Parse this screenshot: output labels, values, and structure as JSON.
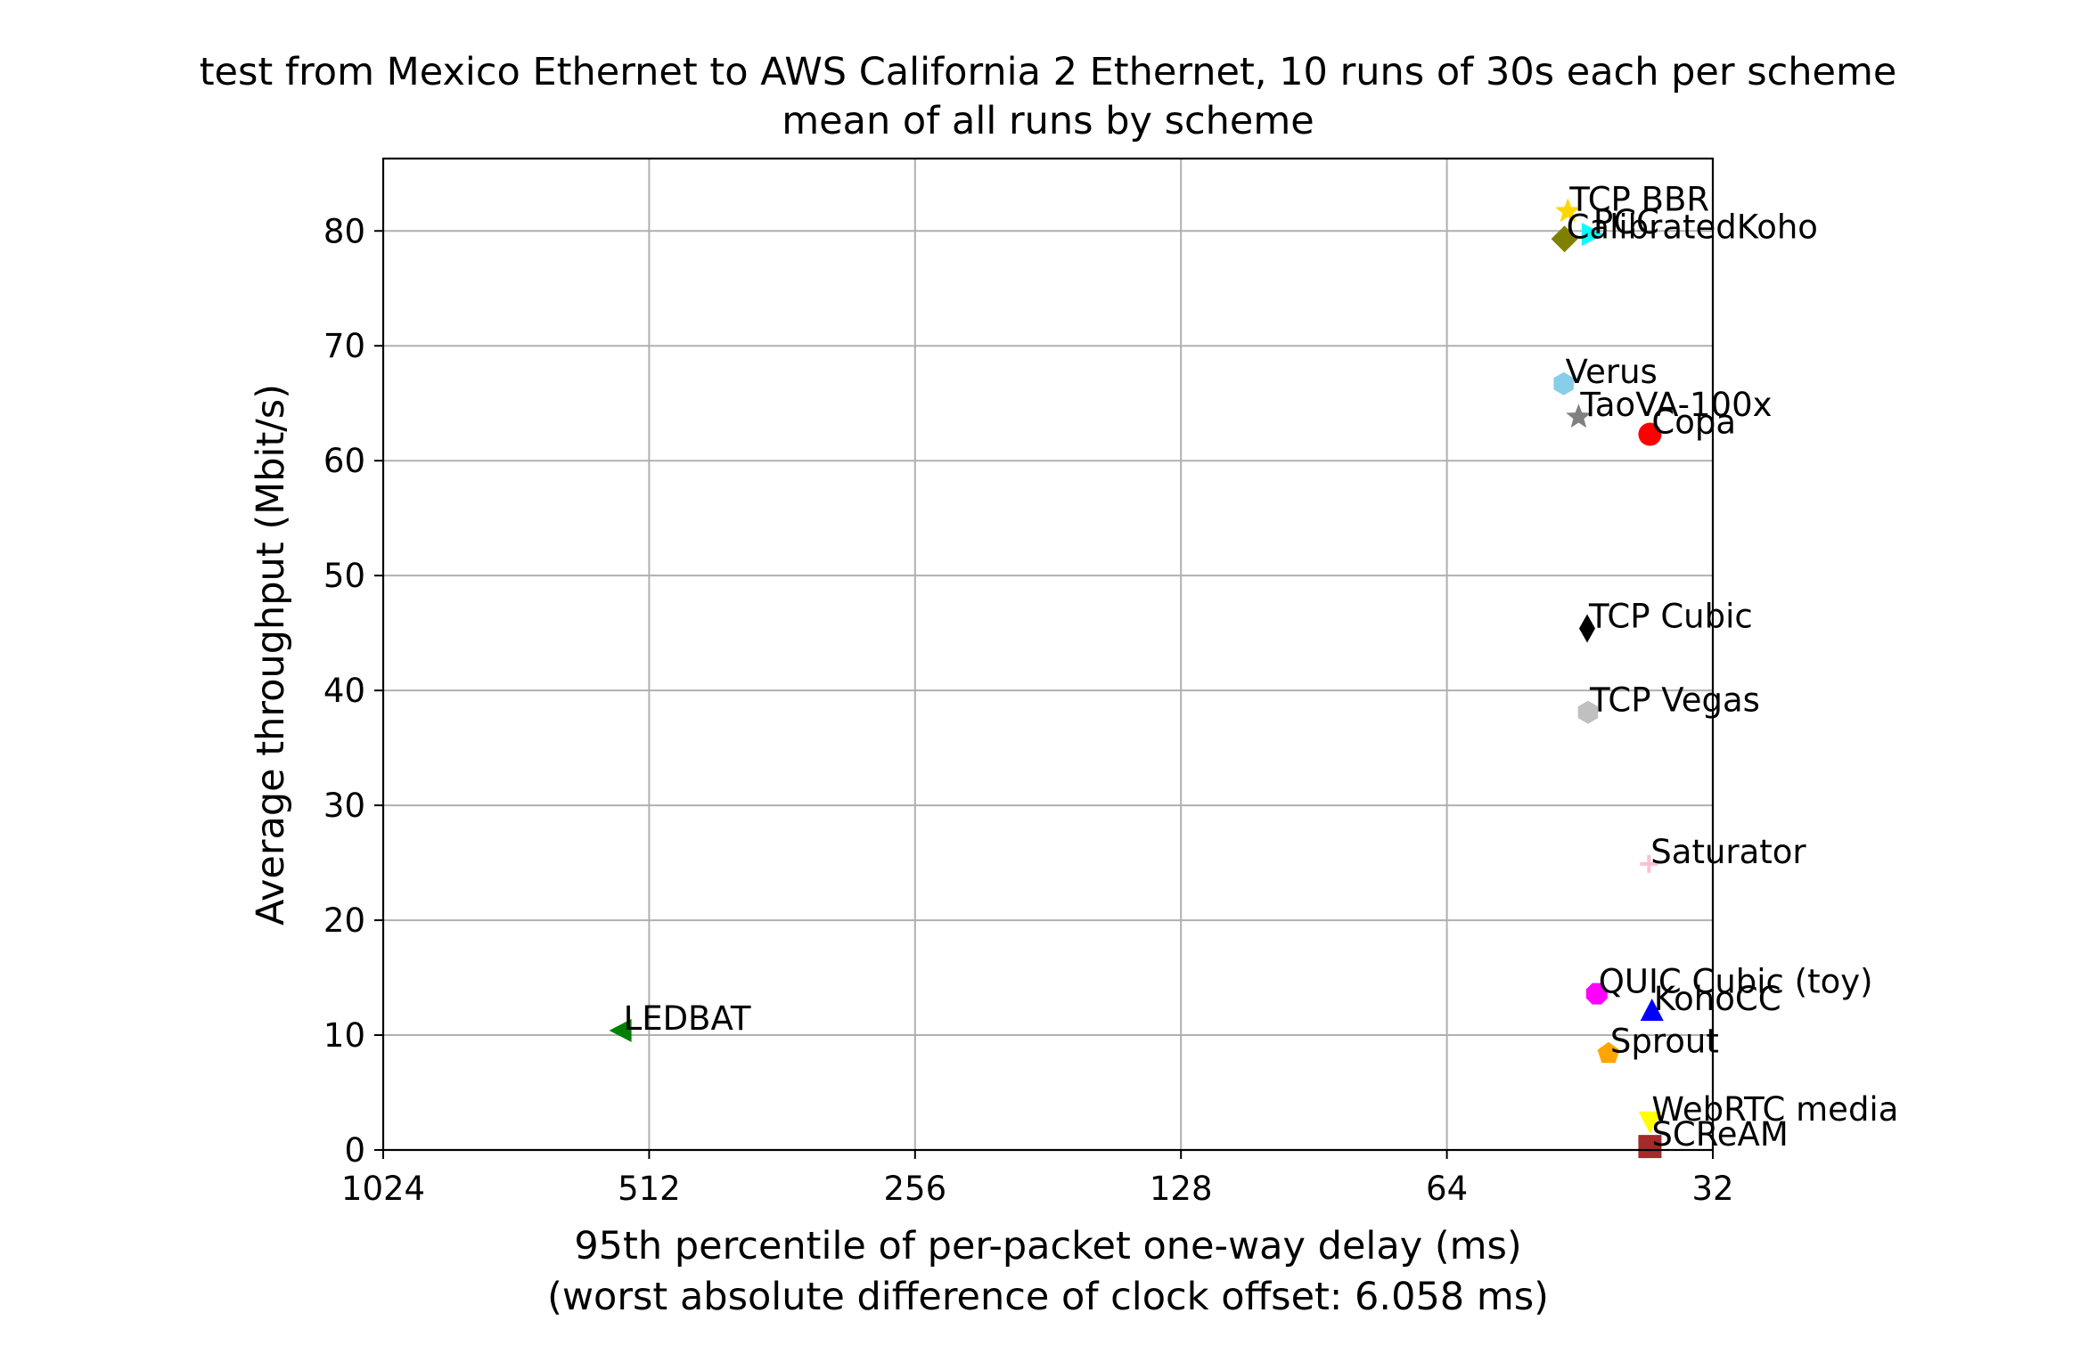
{
  "chart_data": {
    "type": "scatter",
    "title": "test from Mexico Ethernet to AWS California 2 Ethernet, 10 runs of 30s each per scheme",
    "subtitle": "mean of all runs by scheme",
    "xlabel": "95th percentile of per-packet one-way delay (ms)",
    "xlabel_note": "(worst absolute difference of clock offset: 6.058 ms)",
    "ylabel": "Average throughput (Mbit/s)",
    "x_scale": "log2",
    "x_inverted": true,
    "xlim": [
      1024,
      32
    ],
    "ylim": [
      0,
      86.3
    ],
    "xticks": [
      1024,
      512,
      256,
      128,
      64,
      32
    ],
    "xtick_labels": [
      "1024",
      "512",
      "256",
      "128",
      "64",
      "32"
    ],
    "yticks": [
      0,
      10,
      20,
      30,
      40,
      50,
      60,
      70,
      80
    ],
    "ytick_labels": [
      "0",
      "10",
      "20",
      "30",
      "40",
      "50",
      "60",
      "70",
      "80"
    ],
    "grid": true,
    "points": [
      {
        "name": "TCP BBR",
        "x": 46.7,
        "y": 81.7,
        "marker": "star",
        "color": "#ffd700"
      },
      {
        "name": "PCC",
        "x": 43.9,
        "y": 79.7,
        "marker": "triangle-right",
        "color": "#00ffff"
      },
      {
        "name": "CalibratedKoho",
        "x": 47.1,
        "y": 79.3,
        "marker": "diamond",
        "color": "#808000"
      },
      {
        "name": "Verus",
        "x": 47.2,
        "y": 66.7,
        "marker": "hexagon",
        "color": "#87ceeb"
      },
      {
        "name": "TaoVA-100x",
        "x": 45.4,
        "y": 63.8,
        "marker": "star",
        "color": "#808080"
      },
      {
        "name": "Copa",
        "x": 37.7,
        "y": 62.3,
        "marker": "circle",
        "color": "#ff0000"
      },
      {
        "name": "TCP Cubic",
        "x": 44.4,
        "y": 45.4,
        "marker": "thin-diamond",
        "color": "#000000"
      },
      {
        "name": "TCP Vegas",
        "x": 44.3,
        "y": 38.1,
        "marker": "hexagon",
        "color": "#c0c0c0"
      },
      {
        "name": "Saturator",
        "x": 37.8,
        "y": 24.9,
        "marker": "plus",
        "color": "#ffc0cb"
      },
      {
        "name": "QUIC Cubic (toy)",
        "x": 43.3,
        "y": 13.6,
        "marker": "octagon",
        "color": "#ff00ff"
      },
      {
        "name": "KohoCC",
        "x": 37.5,
        "y": 12.1,
        "marker": "triangle-up",
        "color": "#0000ff"
      },
      {
        "name": "LEDBAT",
        "x": 550,
        "y": 10.4,
        "marker": "triangle-left",
        "color": "#008000"
      },
      {
        "name": "Sprout",
        "x": 42.0,
        "y": 8.4,
        "marker": "pentagon",
        "color": "#ffa500"
      },
      {
        "name": "WebRTC media",
        "x": 37.7,
        "y": 2.5,
        "marker": "triangle-down",
        "color": "#ffff00"
      },
      {
        "name": "SCReAM",
        "x": 37.7,
        "y": 0.3,
        "marker": "square",
        "color": "#a52a2a"
      }
    ]
  }
}
